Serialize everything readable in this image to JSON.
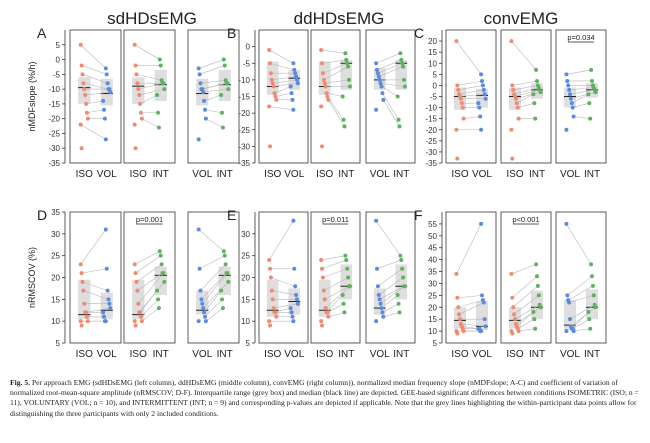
{
  "column_titles": [
    "sdHDsEMG",
    "ddHDsEMG",
    "convEMG"
  ],
  "caption": {
    "label": "Fig. 5.",
    "text": "Per approach EMG (sdHDsEMG (left column), ddHDsEMG (middle column), convEMG (right column)), normalized median frequency slope (nMDFslope; A-C) and coefficient of variation of normalized root-mean-square amplitude (nRMSCOV; D-F). Interquartile range (grey box) and median (black line) are depicted. GEE-based significant differences between conditions ISOMETRIC (ISO; n = 11), VOLUNTARY (VOL; n = 10), and INTERMITTENT (INT; n = 9) and corresponding p-values are depicted if applicable. Note that the grey lines highlighting the within-participant data points allow for distinguishing the three participants with only 2 included conditions."
  },
  "colors": {
    "ISO": "#f08a70",
    "VOL": "#5b8be0",
    "INT": "#5cb35c",
    "box": "#dedede",
    "median": "#222222",
    "link": "#b8b8b8"
  },
  "chart_data": [
    {
      "type": "scatter",
      "panel": "A",
      "ylabel": "nMDFslope (%/h)",
      "ylim": [
        -35,
        10
      ],
      "yticks": [
        -35,
        -30,
        -25,
        -20,
        -15,
        -10,
        -5,
        0,
        5
      ],
      "subplots": [
        {
          "pair": [
            "ISO",
            "VOL"
          ],
          "p": "",
          "left": [
            5,
            -2,
            -5,
            -8,
            -10,
            -12,
            -15,
            -18,
            -20,
            -22,
            -30
          ],
          "right": [
            -3,
            -5,
            -8,
            -10,
            -10,
            -11,
            -14,
            -17,
            -20,
            -27
          ],
          "left_box": [
            -15,
            -9.5,
            -6
          ],
          "right_box": [
            -15.5,
            -11.5,
            -6.5
          ]
        },
        {
          "pair": [
            "ISO",
            "INT"
          ],
          "p": "",
          "left": [
            5,
            -2,
            -5,
            -8,
            -10,
            -12,
            -15,
            -18,
            -20,
            -22,
            -30
          ],
          "right": [
            0,
            -2,
            -7,
            -8,
            -8,
            -10,
            -12,
            -18,
            -23
          ],
          "left_box": [
            -15,
            -9,
            -6
          ],
          "right_box": [
            -14,
            -8.5,
            -3.5
          ]
        },
        {
          "pair": [
            "VOL",
            "INT"
          ],
          "p": "",
          "left": [
            -3,
            -5,
            -8,
            -10,
            -10,
            -11,
            -14,
            -17,
            -20,
            -27
          ],
          "right": [
            0,
            -2,
            -7,
            -8,
            -8,
            -10,
            -12,
            -18,
            -23
          ],
          "left_box": [
            -15.5,
            -11.5,
            -6.5
          ],
          "right_box": [
            -14,
            -8.5,
            -3.5
          ]
        }
      ]
    },
    {
      "type": "scatter",
      "panel": "B",
      "ylabel": "",
      "ylim": [
        -35,
        5
      ],
      "yticks": [
        -35,
        -30,
        -25,
        -20,
        -15,
        -10,
        -5,
        0
      ],
      "subplots": [
        {
          "pair": [
            "ISO",
            "VOL"
          ],
          "p": "",
          "left": [
            -1,
            -5,
            -8,
            -10,
            -11,
            -12,
            -14,
            -15,
            -16,
            -18,
            -30
          ],
          "right": [
            -5,
            -7,
            -8,
            -9,
            -10,
            -11,
            -12,
            -14,
            -16,
            -19
          ],
          "left_box": [
            -14.5,
            -12,
            -4.5
          ],
          "right_box": [
            -13,
            -9.5,
            -7
          ]
        },
        {
          "pair": [
            "ISO",
            "INT"
          ],
          "p": "",
          "left": [
            -1,
            -5,
            -8,
            -10,
            -11,
            -12,
            -14,
            -15,
            -16,
            -18,
            -30
          ],
          "right": [
            -2,
            -4,
            -5,
            -6,
            -10,
            -12,
            -15,
            -22,
            -24
          ],
          "left_box": [
            -14.5,
            -12,
            -4.5
          ],
          "right_box": [
            -13,
            -5,
            -4
          ]
        },
        {
          "pair": [
            "VOL",
            "INT"
          ],
          "p": "",
          "left": [
            -5,
            -7,
            -8,
            -9,
            -10,
            -11,
            -12,
            -14,
            -16,
            -19
          ],
          "right": [
            -2,
            -4,
            -5,
            -6,
            -10,
            -12,
            -15,
            -22,
            -24
          ],
          "left_box": [
            -13,
            -10,
            -6.5
          ],
          "right_box": [
            -13,
            -5,
            -4
          ]
        }
      ]
    },
    {
      "type": "scatter",
      "panel": "C",
      "ylabel": "",
      "ylim": [
        -35,
        25
      ],
      "yticks": [
        -35,
        -30,
        -25,
        -20,
        -15,
        -10,
        -5,
        0,
        5,
        10,
        15,
        20
      ],
      "subplots": [
        {
          "pair": [
            "ISO",
            "VOL"
          ],
          "p": "",
          "left": [
            20,
            0,
            -2,
            -4,
            -5,
            -6,
            -8,
            -10,
            -15,
            -20,
            -33
          ],
          "right": [
            5,
            2,
            0,
            -2,
            -4,
            -6,
            -8,
            -10,
            -14,
            -20
          ],
          "left_box": [
            -11,
            -5,
            -1
          ],
          "right_box": [
            -10,
            -4.5,
            -1.5
          ]
        },
        {
          "pair": [
            "ISO",
            "INT"
          ],
          "p": "",
          "left": [
            20,
            0,
            -2,
            -4,
            -5,
            -6,
            -8,
            -10,
            -15,
            -20,
            -33
          ],
          "right": [
            7,
            2,
            0,
            -1,
            -2,
            -3,
            -4,
            -8,
            -15
          ],
          "left_box": [
            -11,
            -5,
            -1
          ],
          "right_box": [
            -6,
            -2,
            1
          ]
        },
        {
          "pair": [
            "VOL",
            "INT"
          ],
          "p": "p=0.034",
          "left": [
            5,
            2,
            0,
            -2,
            -4,
            -6,
            -8,
            -10,
            -14,
            -20
          ],
          "right": [
            7,
            2,
            0,
            -1,
            -2,
            -3,
            -4,
            -8,
            -15
          ],
          "left_box": [
            -10,
            -5,
            -1
          ],
          "right_box": [
            -5.5,
            -2,
            1
          ]
        }
      ]
    },
    {
      "type": "scatter",
      "panel": "D",
      "ylabel": "nRMSCOV (%)",
      "ylim": [
        5,
        35
      ],
      "yticks": [
        5,
        10,
        15,
        20,
        25,
        30,
        35
      ],
      "subplots": [
        {
          "pair": [
            "ISO",
            "VOL"
          ],
          "p": "",
          "left": [
            23,
            21,
            19,
            17,
            14,
            12,
            12,
            11,
            10,
            10,
            9
          ],
          "right": [
            31,
            22,
            17,
            15,
            14,
            13,
            12,
            11,
            10,
            10
          ],
          "left_box": [
            10.5,
            11.5,
            19.5
          ],
          "right_box": [
            10.5,
            12.5,
            16.5
          ]
        },
        {
          "pair": [
            "ISO",
            "INT"
          ],
          "p": "p=0.001",
          "left": [
            23,
            21,
            19,
            17,
            14,
            12,
            12,
            11,
            10,
            10,
            9
          ],
          "right": [
            26,
            25,
            23,
            21,
            21,
            19,
            17,
            15,
            13
          ],
          "left_box": [
            10.5,
            11.5,
            19.5
          ],
          "right_box": [
            16,
            20.5,
            22.5
          ]
        },
        {
          "pair": [
            "VOL",
            "INT"
          ],
          "p": "",
          "left": [
            31,
            22,
            17,
            15,
            14,
            13,
            12,
            11,
            10,
            10
          ],
          "right": [
            26,
            25,
            23,
            21,
            21,
            19,
            17,
            15,
            13
          ],
          "left_box": [
            11.5,
            12.5,
            17
          ],
          "right_box": [
            16,
            20.5,
            22.5
          ]
        }
      ]
    },
    {
      "type": "scatter",
      "panel": "E",
      "ylabel": "",
      "ylim": [
        5,
        35
      ],
      "yticks": [
        5,
        10,
        15,
        20,
        25,
        30
      ],
      "subplots": [
        {
          "pair": [
            "ISO",
            "VOL"
          ],
          "p": "",
          "left": [
            24,
            22,
            20,
            17,
            15,
            13,
            12,
            12,
            11,
            10,
            9
          ],
          "right": [
            33,
            22,
            18,
            16,
            15,
            14,
            13,
            12,
            11,
            10
          ],
          "left_box": [
            11,
            12.5,
            19.5
          ],
          "right_box": [
            11.5,
            14.5,
            17.5
          ]
        },
        {
          "pair": [
            "ISO",
            "INT"
          ],
          "p": "p=0.011",
          "left": [
            24,
            22,
            20,
            17,
            15,
            13,
            12,
            12,
            11,
            10,
            9
          ],
          "right": [
            25,
            24,
            22,
            20,
            18,
            18,
            16,
            14,
            12
          ],
          "left_box": [
            11,
            12.5,
            19.5
          ],
          "right_box": [
            15,
            18,
            23
          ]
        },
        {
          "pair": [
            "VOL",
            "INT"
          ],
          "p": "",
          "left": [
            33,
            22,
            18,
            16,
            15,
            14,
            13,
            12,
            11,
            10
          ],
          "right": [
            25,
            24,
            22,
            20,
            18,
            18,
            16,
            14,
            12
          ],
          "left_box": [
            11.5,
            13,
            17.5
          ],
          "right_box": [
            15,
            18,
            23
          ]
        }
      ]
    },
    {
      "type": "scatter",
      "panel": "F",
      "ylabel": "",
      "ylim": [
        5,
        60
      ],
      "yticks": [
        5,
        10,
        15,
        20,
        25,
        30,
        35,
        40,
        45,
        50,
        55
      ],
      "subplots": [
        {
          "pair": [
            "ISO",
            "VOL"
          ],
          "p": "",
          "left": [
            34,
            24,
            20,
            17,
            15,
            13,
            12,
            11,
            10,
            10,
            9
          ],
          "right": [
            55,
            25,
            23,
            22,
            15,
            12,
            11,
            11,
            10,
            10
          ],
          "left_box": [
            11,
            14.5,
            20
          ],
          "right_box": [
            10.5,
            12,
            22.5
          ]
        },
        {
          "pair": [
            "ISO",
            "INT"
          ],
          "p": "p<0.001",
          "left": [
            34,
            24,
            20,
            17,
            15,
            13,
            12,
            11,
            10,
            10,
            9
          ],
          "right": [
            38,
            33,
            29,
            25,
            21,
            20,
            18,
            15,
            11
          ],
          "left_box": [
            11,
            14.5,
            20
          ],
          "right_box": [
            15,
            20,
            27
          ]
        },
        {
          "pair": [
            "VOL",
            "INT"
          ],
          "p": "",
          "left": [
            55,
            25,
            23,
            22,
            15,
            12,
            11,
            11,
            10,
            10
          ],
          "right": [
            38,
            33,
            29,
            25,
            21,
            20,
            18,
            15,
            11
          ],
          "left_box": [
            10.5,
            12.5,
            23
          ],
          "right_box": [
            15,
            20,
            27.5
          ]
        }
      ]
    }
  ]
}
